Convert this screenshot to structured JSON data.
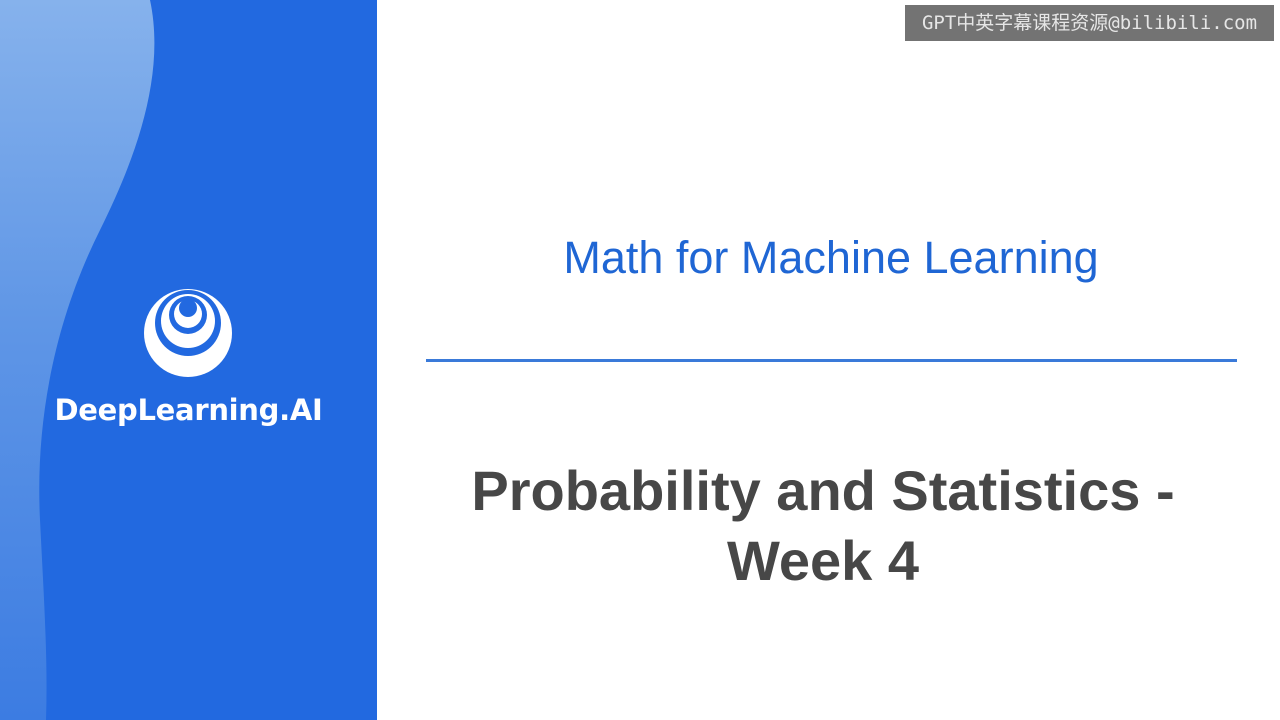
{
  "brand": {
    "name": "DeepLearning.AI",
    "logo_icon": "deeplearning-ai-logo-icon",
    "panel_color": "#2269e0"
  },
  "slide": {
    "course_title": "Math for Machine Learning",
    "module_title_line1": "Probability and Statistics -",
    "module_title_line2": "Week 4",
    "accent_color": "#1f66d4",
    "title_color": "#474747"
  },
  "watermark": {
    "text": "GPT中英字幕课程资源@bilibili.com"
  }
}
